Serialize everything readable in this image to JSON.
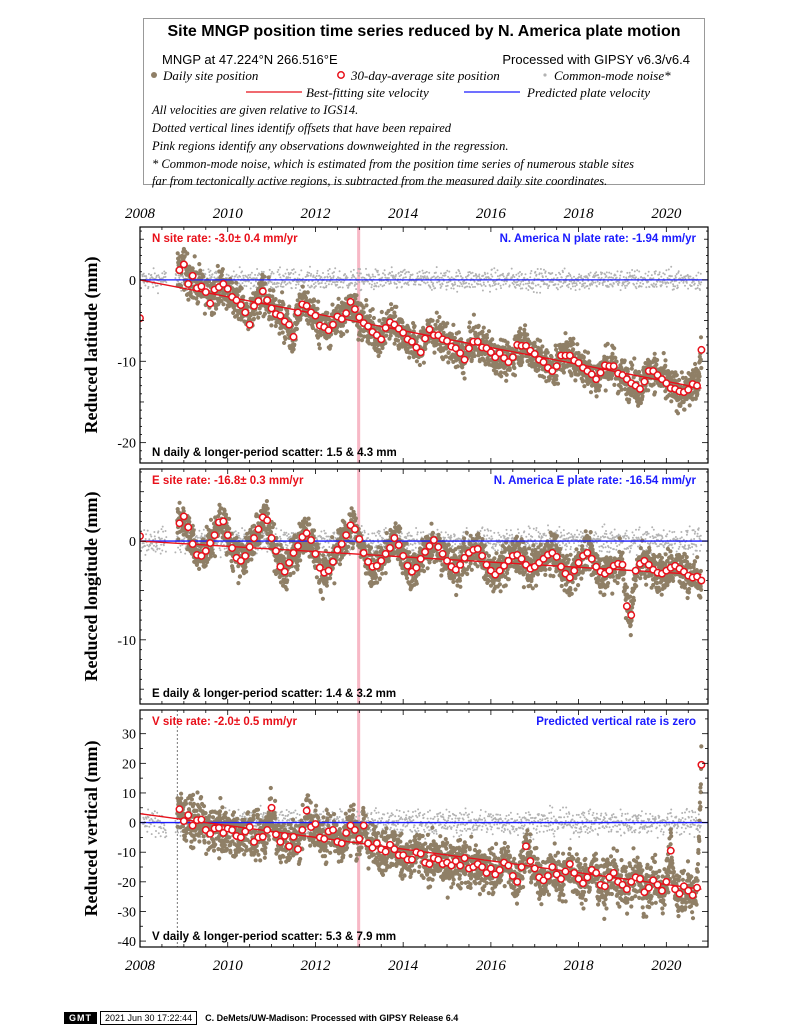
{
  "legend": {
    "title": "Site MNGP position time series reduced by N. America plate motion",
    "site_location": "MNGP at 47.224°N 266.516°E",
    "processing": "Processed with GIPSY v6.3/v6.4",
    "daily_label": "Daily site position",
    "avg_label": "30-day-average site position",
    "cm_label": "Common-mode noise*",
    "best_fit_label": "Best-fitting site velocity",
    "plate_label": "Predicted plate velocity",
    "notes": [
      "All velocities are given relative to IGS14.",
      "Dotted vertical lines identify offsets that have been repaired",
      "Pink regions identify any observations downweighted in the regression.",
      "* Common-mode noise, which is estimated from the position time series of numerous stable sites",
      "far from tectonically active regions, is subtracted from the measured daily site coordinates."
    ]
  },
  "colors": {
    "daily": "#8f7f66",
    "avg_stroke": "#e8101a",
    "common_mode": "#b3b3b3",
    "fit": "#e8101a",
    "plate": "#1a1aff",
    "pink_region": "#f7b8c6",
    "site_rate_text": "#e8101a",
    "plate_rate_text": "#1a1aff"
  },
  "chart_data": [
    {
      "type": "scatter",
      "component": "N",
      "ylabel": "Reduced latitude (mm)",
      "xlim": [
        2008,
        2020.95
      ],
      "ylim": [
        -22.5,
        6.5
      ],
      "yticks": [
        0,
        -10,
        -20
      ],
      "xticks": [
        2008,
        2010,
        2012,
        2014,
        2016,
        2018,
        2020
      ],
      "site_rate": "N site rate:  -3.0± 0.4 mm/yr",
      "plate_rate": "N. America N plate rate: -1.94 mm/yr",
      "scatter": "N daily & longer-period scatter:   1.5 &   4.3 mm",
      "fit": {
        "x": [
          2008.0,
          2020.8
        ],
        "y": [
          0.0,
          -13.3
        ]
      },
      "plate_line": {
        "x": [
          2008.0,
          2020.95
        ],
        "y": [
          0.0,
          0.0
        ]
      },
      "pink_region": [
        2012.95,
        2013.02
      ],
      "offsets": [],
      "monthly_avg": {
        "x": [
          2008.0,
          2008.9,
          2009.0,
          2009.1,
          2009.2,
          2009.3,
          2009.4,
          2009.5,
          2009.6,
          2009.7,
          2009.8,
          2009.9,
          2010.0,
          2010.1,
          2010.2,
          2010.3,
          2010.4,
          2010.5,
          2010.6,
          2010.7,
          2010.8,
          2010.9,
          2011.0,
          2011.1,
          2011.2,
          2011.3,
          2011.4,
          2011.5,
          2011.6,
          2011.7,
          2011.8,
          2011.9,
          2012.0,
          2012.1,
          2012.2,
          2012.3,
          2012.4,
          2012.5,
          2012.6,
          2012.7,
          2012.8,
          2012.9,
          2013.0,
          2013.1,
          2013.2,
          2013.3,
          2013.4,
          2013.5,
          2013.6,
          2013.7,
          2013.8,
          2013.9,
          2014.0,
          2014.1,
          2014.2,
          2014.3,
          2014.4,
          2014.5,
          2014.6,
          2014.7,
          2014.8,
          2014.9,
          2015.0,
          2015.1,
          2015.2,
          2015.3,
          2015.4,
          2015.5,
          2015.6,
          2015.7,
          2015.8,
          2015.9,
          2016.0,
          2016.1,
          2016.2,
          2016.3,
          2016.4,
          2016.5,
          2016.6,
          2016.7,
          2016.8,
          2016.9,
          2017.0,
          2017.1,
          2017.2,
          2017.3,
          2017.4,
          2017.5,
          2017.6,
          2017.7,
          2017.8,
          2017.9,
          2018.0,
          2018.1,
          2018.2,
          2018.3,
          2018.4,
          2018.5,
          2018.6,
          2018.7,
          2018.8,
          2018.9,
          2019.0,
          2019.1,
          2019.2,
          2019.3,
          2019.4,
          2019.5,
          2019.6,
          2019.7,
          2019.8,
          2019.9,
          2020.0,
          2020.1,
          2020.2,
          2020.3,
          2020.4,
          2020.5,
          2020.6,
          2020.7,
          2020.8
        ],
        "y": [
          -4.7,
          1.2,
          1.9,
          -0.5,
          0.5,
          -1.0,
          -0.8,
          -1.5,
          -2.9,
          -1.2,
          -0.9,
          -0.5,
          -1.1,
          -2.1,
          -2.5,
          -3.1,
          -4.0,
          -5.5,
          -3.2,
          -2.6,
          -1.4,
          -2.5,
          -3.5,
          -4.2,
          -4.4,
          -5.1,
          -5.5,
          -7.0,
          -4.0,
          -3.0,
          -3.2,
          -4.0,
          -4.4,
          -5.6,
          -5.8,
          -6.2,
          -5.5,
          -4.5,
          -4.8,
          -4.1,
          -2.7,
          -3.6,
          -4.6,
          -5.3,
          -5.7,
          -6.4,
          -6.8,
          -7.3,
          -5.9,
          -5.2,
          -5.5,
          -6.0,
          -6.5,
          -7.3,
          -7.6,
          -8.3,
          -8.9,
          -7.2,
          -6.1,
          -6.8,
          -6.8,
          -7.3,
          -7.5,
          -8.2,
          -8.4,
          -9.0,
          -9.8,
          -8.4,
          -7.6,
          -7.6,
          -8.3,
          -8.4,
          -8.9,
          -9.5,
          -9.0,
          -9.6,
          -10.1,
          -9.5,
          -8.0,
          -8.1,
          -8.1,
          -8.7,
          -9.1,
          -9.8,
          -10.1,
          -10.8,
          -11.2,
          -10.6,
          -9.3,
          -9.3,
          -9.3,
          -9.9,
          -10.2,
          -10.8,
          -11.2,
          -11.6,
          -12.2,
          -11.4,
          -10.5,
          -10.6,
          -10.6,
          -11.5,
          -11.7,
          -12.2,
          -12.7,
          -13.0,
          -13.4,
          -12.5,
          -11.2,
          -11.2,
          -11.7,
          -12.2,
          -12.7,
          -13.3,
          -13.4,
          -13.7,
          -13.8,
          -13.5,
          -12.8,
          -13.0,
          -8.6
        ]
      }
    },
    {
      "type": "scatter",
      "component": "E",
      "ylabel": "Reduced longitude (mm)",
      "xlim": [
        2008,
        2020.95
      ],
      "ylim": [
        -16.5,
        7.3
      ],
      "yticks": [
        0,
        -10
      ],
      "xticks": [
        2008,
        2010,
        2012,
        2014,
        2016,
        2018,
        2020
      ],
      "site_rate": "E site rate: -16.8± 0.3 mm/yr",
      "plate_rate": "N. America E plate rate: -16.54 mm/yr",
      "scatter": "E daily & longer-period scatter:   1.4 &   3.2 mm",
      "fit": {
        "x": [
          2008.0,
          2020.8
        ],
        "y": [
          0.0,
          -3.4
        ]
      },
      "plate_line": {
        "x": [
          2008.0,
          2020.95
        ],
        "y": [
          0.0,
          0.0
        ]
      },
      "pink_region": [
        2012.95,
        2013.02
      ],
      "offsets": [],
      "monthly_avg": {
        "x": [
          2008.0,
          2008.9,
          2009.0,
          2009.1,
          2009.2,
          2009.3,
          2009.4,
          2009.5,
          2009.6,
          2009.7,
          2009.8,
          2009.9,
          2010.0,
          2010.1,
          2010.2,
          2010.3,
          2010.4,
          2010.5,
          2010.6,
          2010.7,
          2010.8,
          2010.9,
          2011.0,
          2011.1,
          2011.2,
          2011.3,
          2011.4,
          2011.5,
          2011.6,
          2011.7,
          2011.8,
          2011.9,
          2012.0,
          2012.1,
          2012.2,
          2012.3,
          2012.4,
          2012.5,
          2012.6,
          2012.7,
          2012.8,
          2012.9,
          2013.0,
          2013.1,
          2013.2,
          2013.3,
          2013.4,
          2013.5,
          2013.6,
          2013.7,
          2013.8,
          2013.9,
          2014.0,
          2014.1,
          2014.2,
          2014.3,
          2014.4,
          2014.5,
          2014.6,
          2014.7,
          2014.8,
          2014.9,
          2015.0,
          2015.1,
          2015.2,
          2015.3,
          2015.4,
          2015.5,
          2015.6,
          2015.7,
          2015.8,
          2015.9,
          2016.0,
          2016.1,
          2016.2,
          2016.3,
          2016.4,
          2016.5,
          2016.6,
          2016.7,
          2016.8,
          2016.9,
          2017.0,
          2017.1,
          2017.2,
          2017.3,
          2017.4,
          2017.5,
          2017.6,
          2017.7,
          2017.8,
          2017.9,
          2018.0,
          2018.1,
          2018.2,
          2018.3,
          2018.4,
          2018.5,
          2018.6,
          2018.7,
          2018.8,
          2018.9,
          2019.0,
          2019.1,
          2019.2,
          2019.3,
          2019.4,
          2019.5,
          2019.6,
          2019.7,
          2019.8,
          2019.9,
          2020.0,
          2020.1,
          2020.2,
          2020.3,
          2020.4,
          2020.5,
          2020.6,
          2020.7,
          2020.8
        ],
        "y": [
          0.5,
          1.8,
          2.5,
          1.4,
          -0.3,
          -1.4,
          -1.5,
          -1.0,
          -0.2,
          0.6,
          1.9,
          2.0,
          0.6,
          -0.7,
          -1.7,
          -2.0,
          -1.5,
          -0.6,
          0.3,
          1.2,
          2.4,
          2.1,
          0.3,
          -1.0,
          -2.6,
          -3.1,
          -2.2,
          -1.2,
          -0.5,
          0.4,
          0.8,
          0.1,
          -1.3,
          -2.7,
          -3.2,
          -3.0,
          -2.1,
          -0.9,
          -0.3,
          0.6,
          1.6,
          1.2,
          0.2,
          -1.2,
          -2.1,
          -2.6,
          -2.5,
          -2.0,
          -1.3,
          -0.7,
          0.3,
          -0.4,
          -1.5,
          -2.5,
          -3.1,
          -2.7,
          -1.8,
          -1.1,
          -0.5,
          0.1,
          -0.6,
          -1.3,
          -2.0,
          -2.6,
          -2.9,
          -2.4,
          -1.7,
          -1.2,
          -0.9,
          -0.8,
          -1.5,
          -2.4,
          -3.0,
          -3.4,
          -3.0,
          -2.5,
          -2.0,
          -1.5,
          -1.4,
          -1.8,
          -2.4,
          -2.8,
          -2.6,
          -2.2,
          -1.8,
          -1.4,
          -1.2,
          -1.6,
          -2.6,
          -3.3,
          -3.7,
          -3.0,
          -2.2,
          -1.5,
          -1.2,
          -1.8,
          -2.6,
          -3.1,
          -3.3,
          -3.0,
          -2.5,
          -2.3,
          -2.4,
          -6.6,
          -7.5,
          -3.0,
          -2.3,
          -2.0,
          -2.4,
          -2.9,
          -3.2,
          -3.3,
          -3.0,
          -2.7,
          -2.5,
          -2.8,
          -3.1,
          -3.5,
          -3.7,
          -3.6,
          -4.0
        ]
      }
    },
    {
      "type": "scatter",
      "component": "V",
      "ylabel": "Reduced vertical (mm)",
      "xlim": [
        2008,
        2020.95
      ],
      "ylim": [
        -42,
        38
      ],
      "yticks": [
        30,
        20,
        10,
        0,
        -10,
        -20,
        -30,
        -40
      ],
      "xticks": [
        2008,
        2010,
        2012,
        2014,
        2016,
        2018,
        2020
      ],
      "site_rate": "V site rate:  -2.0± 0.5 mm/yr",
      "plate_rate": "Predicted vertical rate is zero",
      "scatter": "V daily & longer-period scatter:   5.3 &   7.9 mm",
      "fit": {
        "x": [
          2008.0,
          2020.8
        ],
        "y": [
          3.0,
          -22.5
        ]
      },
      "plate_line": {
        "x": [
          2008.0,
          2020.95
        ],
        "y": [
          0.0,
          0.0
        ]
      },
      "pink_region": [
        2012.95,
        2013.02
      ],
      "offsets": [
        2008.85
      ],
      "monthly_avg": {
        "x": [
          2008.9,
          2009.0,
          2009.1,
          2009.2,
          2009.3,
          2009.4,
          2009.5,
          2009.6,
          2009.7,
          2009.8,
          2009.9,
          2010.0,
          2010.1,
          2010.2,
          2010.3,
          2010.4,
          2010.5,
          2010.6,
          2010.7,
          2010.8,
          2010.9,
          2011.0,
          2011.1,
          2011.2,
          2011.3,
          2011.4,
          2011.5,
          2011.6,
          2011.7,
          2011.8,
          2011.9,
          2012.0,
          2012.1,
          2012.2,
          2012.3,
          2012.4,
          2012.5,
          2012.6,
          2012.7,
          2012.8,
          2012.9,
          2013.0,
          2013.1,
          2013.2,
          2013.3,
          2013.4,
          2013.5,
          2013.6,
          2013.7,
          2013.8,
          2013.9,
          2014.0,
          2014.1,
          2014.2,
          2014.3,
          2014.4,
          2014.5,
          2014.6,
          2014.7,
          2014.8,
          2014.9,
          2015.0,
          2015.1,
          2015.2,
          2015.3,
          2015.4,
          2015.5,
          2015.6,
          2015.7,
          2015.8,
          2015.9,
          2016.0,
          2016.1,
          2016.2,
          2016.3,
          2016.4,
          2016.5,
          2016.6,
          2016.7,
          2016.8,
          2016.9,
          2017.0,
          2017.1,
          2017.2,
          2017.3,
          2017.4,
          2017.5,
          2017.6,
          2017.7,
          2017.8,
          2017.9,
          2018.0,
          2018.1,
          2018.2,
          2018.3,
          2018.4,
          2018.5,
          2018.6,
          2018.7,
          2018.8,
          2018.9,
          2019.0,
          2019.1,
          2019.2,
          2019.3,
          2019.4,
          2019.5,
          2019.6,
          2019.7,
          2019.8,
          2019.9,
          2020.0,
          2020.1,
          2020.2,
          2020.3,
          2020.4,
          2020.5,
          2020.6,
          2020.7,
          2020.8
        ],
        "y": [
          4.5,
          0.5,
          2.5,
          -1.0,
          0.8,
          1.0,
          -2.5,
          -3.8,
          -2.0,
          -1.8,
          -3.5,
          -2.0,
          -2.5,
          -4.5,
          -5.0,
          -3.0,
          -1.5,
          -6.5,
          -5.0,
          -4.8,
          -2.5,
          5.0,
          -4.0,
          -6.5,
          -4.5,
          -8.0,
          -4.8,
          -9.0,
          -2.5,
          4.0,
          -1.5,
          -0.5,
          -5.0,
          -5.5,
          -3.0,
          -2.5,
          -6.5,
          -7.0,
          -3.5,
          -1.0,
          -2.5,
          -5.5,
          -1.0,
          -7.0,
          -8.5,
          -7.0,
          -9.0,
          -9.8,
          -7.5,
          -9.0,
          -11.0,
          -11.0,
          -12.5,
          -12.5,
          -10.0,
          -10.5,
          -13.5,
          -14.0,
          -12.0,
          -12.5,
          -14.0,
          -13.5,
          -14.5,
          -13.0,
          -14.5,
          -12.0,
          -15.5,
          -15.0,
          -14.0,
          -15.0,
          -17.0,
          -15.5,
          -17.5,
          -16.0,
          -13.5,
          -14.5,
          -18.0,
          -20.0,
          -15.0,
          -8.0,
          -13.0,
          -15.5,
          -18.5,
          -19.5,
          -18.0,
          -15.0,
          -17.5,
          -19.0,
          -16.5,
          -14.0,
          -17.0,
          -19.0,
          -20.5,
          -18.5,
          -16.0,
          -17.0,
          -21.0,
          -21.5,
          -18.5,
          -17.0,
          -20.0,
          -21.0,
          -22.5,
          -20.0,
          -18.5,
          -19.0,
          -23.5,
          -22.0,
          -19.5,
          -21.0,
          -23.0,
          -20.0,
          -9.5,
          -22.5,
          -24.0,
          -21.5,
          -23.0,
          -24.5,
          -22.0,
          19.5
        ]
      }
    }
  ],
  "footer": {
    "logo": "GMT",
    "date": "2021 Jun 30 17:22:44",
    "credit": "C. DeMets/UW-Madison: Processed with GIPSY Release 6.4"
  }
}
